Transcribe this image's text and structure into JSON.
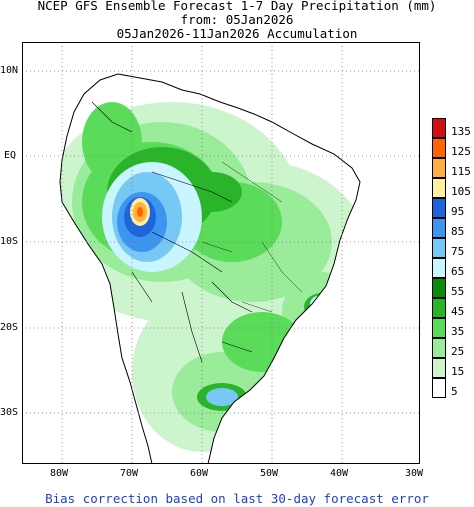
{
  "title": {
    "line1": "NCEP GFS Ensemble Forecast 1-7 Day Precipitation (mm)",
    "line2": "from: 05Jan2026",
    "line3": "05Jan2026-11Jan2026 Accumulation"
  },
  "map": {
    "lat_labels": [
      "10N",
      "EQ",
      "10S",
      "20S",
      "30S"
    ],
    "lon_labels": [
      "80W",
      "70W",
      "60W",
      "50W",
      "40W",
      "30W"
    ],
    "grid": "dotted",
    "extent": {
      "lon": [
        -85,
        -30
      ],
      "lat": [
        -36,
        14
      ]
    }
  },
  "legend": {
    "levels": [
      "135",
      "125",
      "115",
      "105",
      "95",
      "85",
      "75",
      "65",
      "55",
      "45",
      "35",
      "25",
      "15",
      "5"
    ],
    "colors": [
      "#d01010",
      "#ff6400",
      "#ffb040",
      "#fff0a0",
      "#1e64dc",
      "#3c96f0",
      "#78c8f5",
      "#c8f5ff",
      "#0a8c0a",
      "#2ab42a",
      "#5adc5a",
      "#9aeb9a",
      "#cdf5cd",
      "#ffffff"
    ]
  },
  "footer": "Bias correction based on last 30-day forecast error"
}
